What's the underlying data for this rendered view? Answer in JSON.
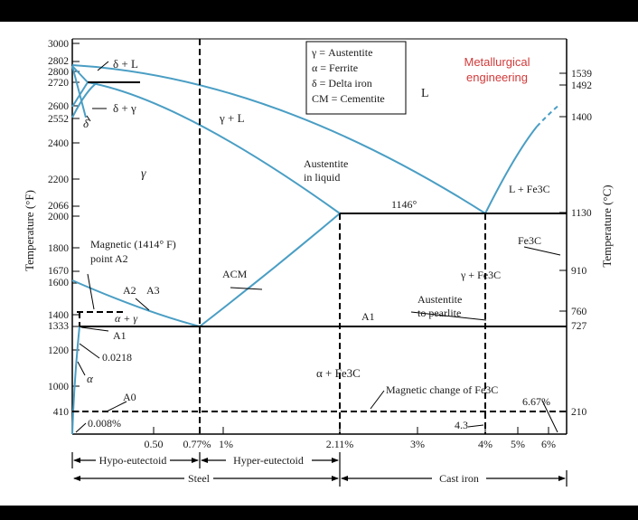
{
  "diagram": {
    "axis_left_label": "Temperature (°F)",
    "axis_right_label": "Temperature (°C)",
    "left_ticks": [
      "3000",
      "2802",
      "2800",
      "2720",
      "2600",
      "2552",
      "2400",
      "2200",
      "2066",
      "2000",
      "1800",
      "1670",
      "1600",
      "1400",
      "1333",
      "1200",
      "1000",
      "410"
    ],
    "right_ticks": [
      "1539",
      "1492",
      "1400",
      "1130",
      "910",
      "760",
      "727",
      "210"
    ],
    "bottom_ticks": [
      "0.50",
      "0.77%",
      "1%",
      "2.11%",
      "3%",
      "4%",
      "5%",
      "6%"
    ],
    "legend": [
      "γ = Austentite",
      "α = Ferrite",
      "δ = Delta iron",
      "CM = Cementite"
    ],
    "watermark": [
      "Metallurgical",
      "engineering"
    ],
    "regions": {
      "delta_l": "δ + L",
      "delta_gamma": "δ + γ",
      "delta": "δ",
      "gamma_l": "γ + L",
      "liquid": "L",
      "gamma": "γ",
      "austenite_in_liquid_1": "Austentite",
      "austenite_in_liquid_2": "in liquid",
      "eutectic_temp": "1146°",
      "l_fe3c": "L + Fe3C",
      "fe3c": "Fe3C",
      "gamma_fe3c": "γ + Fe3C",
      "magnetic_1": "Magnetic (1414° F)",
      "magnetic_2": "point A2",
      "a_cm": "ACM",
      "a2": "A2",
      "a3": "A3",
      "alpha_gamma": "α + γ",
      "a1_left": "A1",
      "a1_right": "A1",
      "carbon_0218": "0.0218",
      "alpha": "α",
      "a0": "A0",
      "alpha_fe3c": "α + Fe3C",
      "aust_pearlite_1": "Austentite",
      "aust_pearlite_2": "to pearlite",
      "magnetic_fe3c": "Magnetic change of Fe3C",
      "pct_667": "6.67%",
      "pct_43": "4.3",
      "pct_0008": "0.008%"
    },
    "bottom_labels": {
      "hypo": "Hypo-eutectoid",
      "hyper": "Hyper-eutectoid",
      "steel": "Steel",
      "cast_iron": "Cast iron"
    },
    "colors": {
      "curve": "#4a9ec4",
      "watermark": "#d23a3a",
      "line": "#000000",
      "background": "#ffffff"
    }
  }
}
